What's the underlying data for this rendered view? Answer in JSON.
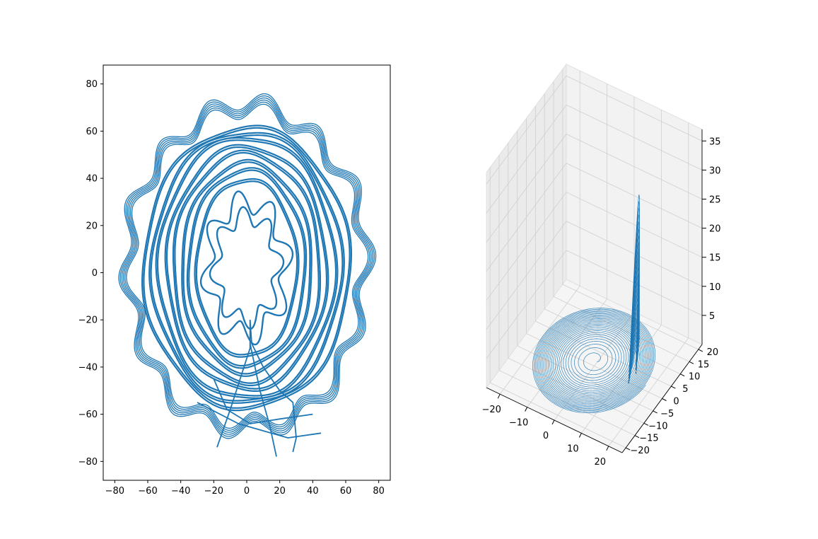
{
  "colors": {
    "line": "#1f77b4",
    "pane_back": "#f2f2f2",
    "pane_side": "#ebebeb",
    "grid": "#cfcfcf",
    "frame": "#000000"
  },
  "chart_data": [
    {
      "type": "line",
      "title": "",
      "xlabel": "",
      "ylabel": "",
      "xlim": [
        -87,
        87
      ],
      "ylim": [
        -88,
        88
      ],
      "grid": false,
      "xticks": [
        -80,
        -60,
        -40,
        -20,
        0,
        20,
        40,
        60,
        80
      ],
      "yticks": [
        -80,
        -60,
        -40,
        -20,
        0,
        20,
        40,
        60,
        80
      ],
      "xtick_labels": [
        "−80",
        "−60",
        "−40",
        "−20",
        "0",
        "20",
        "40",
        "60",
        "80"
      ],
      "ytick_labels": [
        "−80",
        "−60",
        "−40",
        "−20",
        "0",
        "20",
        "40",
        "60",
        "80"
      ],
      "series": [
        {
          "description": "outer wavy closed band",
          "center": [
            0,
            0
          ],
          "rx": 72,
          "ry": 70,
          "wave_amplitude": 4,
          "wave_lobes": 14,
          "y_range_observed": [
            -78,
            80
          ]
        },
        {
          "description": "nested elliptical loops",
          "rx_range": [
            22,
            76
          ],
          "ry_range": [
            30,
            62
          ]
        },
        {
          "description": "inner meandering wavy loops",
          "x_range": [
            -22,
            22
          ],
          "y_range": [
            -28,
            30
          ]
        },
        {
          "description": "converging tails",
          "y_range": [
            -80,
            -20
          ]
        }
      ]
    },
    {
      "type": "line3d",
      "title": "",
      "grid": true,
      "xlim": [
        -25,
        25
      ],
      "ylim": [
        -22,
        22
      ],
      "zlim": [
        0,
        37
      ],
      "xticks": [
        -20,
        -10,
        0,
        10,
        20
      ],
      "yticks": [
        -20,
        -15,
        -10,
        -5,
        0,
        5,
        10,
        15,
        20
      ],
      "zticks": [
        5,
        10,
        15,
        20,
        25,
        30,
        35
      ],
      "xtick_labels": [
        "−20",
        "−10",
        "0",
        "10",
        "20"
      ],
      "ytick_labels": [
        "−20",
        "−15",
        "−10",
        "−5",
        "0",
        "5",
        "10",
        "15",
        "20"
      ],
      "ztick_labels": [
        "5",
        "10",
        "15",
        "20",
        "25",
        "30",
        "35"
      ],
      "series": [
        {
          "description": "spiral in base plane growing outward, radius 1 to 19",
          "center": [
            0,
            0
          ]
        },
        {
          "description": "vertical fin rising near x=15, y=0",
          "z_max": 33
        }
      ]
    }
  ]
}
